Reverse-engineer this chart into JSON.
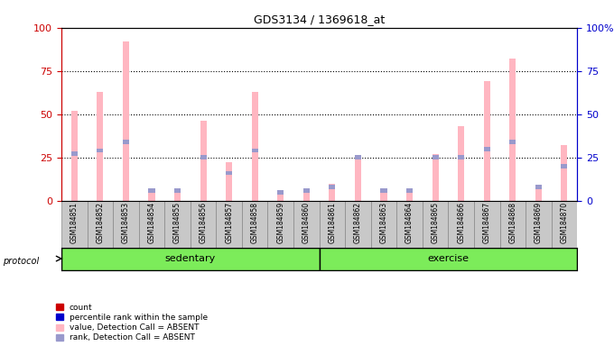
{
  "title": "GDS3134 / 1369618_at",
  "samples": [
    "GSM184851",
    "GSM184852",
    "GSM184853",
    "GSM184854",
    "GSM184855",
    "GSM184856",
    "GSM184857",
    "GSM184858",
    "GSM184859",
    "GSM184860",
    "GSM184861",
    "GSM184862",
    "GSM184863",
    "GSM184864",
    "GSM184865",
    "GSM184866",
    "GSM184867",
    "GSM184868",
    "GSM184869",
    "GSM184870"
  ],
  "pink_bars": [
    52,
    63,
    92,
    7,
    7,
    46,
    22,
    63,
    5,
    7,
    10,
    26,
    7,
    7,
    27,
    43,
    69,
    82,
    7,
    32
  ],
  "blue_band_pos": [
    27,
    29,
    34,
    6,
    6,
    25,
    16,
    29,
    5,
    6,
    8,
    25,
    6,
    6,
    25,
    25,
    30,
    34,
    8,
    20
  ],
  "groups": [
    {
      "label": "sedentary",
      "start": 0,
      "end": 10
    },
    {
      "label": "exercise",
      "start": 10,
      "end": 20
    }
  ],
  "group_color": "#7CEC5A",
  "col_bg_color": "#C8C8C8",
  "chart_bg_color": "#FFFFFF",
  "pink_color": "#FFB6C1",
  "blue_band_color": "#9999CC",
  "red_sq_color": "#CC0000",
  "blue_sq_color": "#0000CC",
  "left_axis_color": "#CC0000",
  "right_axis_color": "#0000CC",
  "yticks": [
    0,
    25,
    50,
    75,
    100
  ],
  "grid_lines": [
    25,
    50,
    75
  ],
  "legend_items": [
    {
      "color": "#CC0000",
      "label": "count"
    },
    {
      "color": "#0000CC",
      "label": "percentile rank within the sample"
    },
    {
      "color": "#FFB6C1",
      "label": "value, Detection Call = ABSENT"
    },
    {
      "color": "#9999CC",
      "label": "rank, Detection Call = ABSENT"
    }
  ],
  "protocol_label": "protocol"
}
